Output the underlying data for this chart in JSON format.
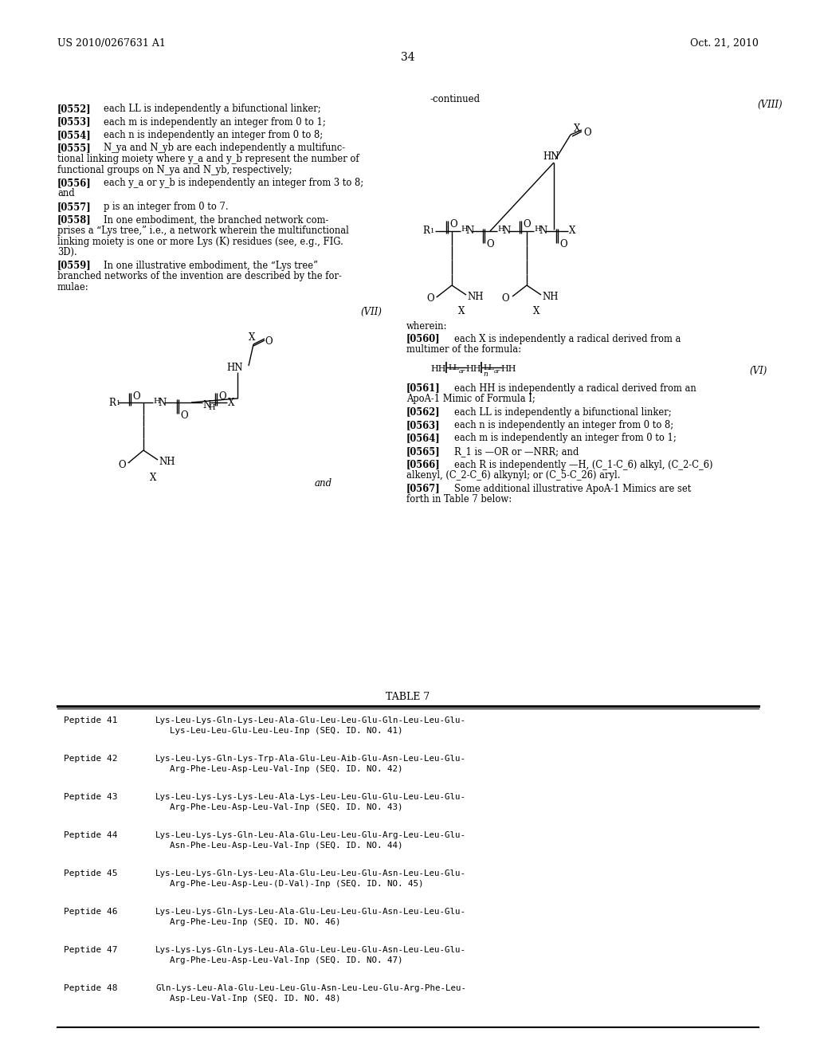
{
  "background_color": "#ffffff",
  "page_number": "34",
  "header_left": "US 2010/0267631 A1",
  "header_right": "Oct. 21, 2010",
  "para_left": [
    {
      "tag": "[0552]",
      "lines": [
        "each LL is independently a bifunctional linker;"
      ]
    },
    {
      "tag": "[0553]",
      "lines": [
        "each m is independently an integer from 0 to 1;"
      ]
    },
    {
      "tag": "[0554]",
      "lines": [
        "each n is independently an integer from 0 to 8;"
      ]
    },
    {
      "tag": "[0555]",
      "lines": [
        "N_ya and N_yb are each independently a multifunc-",
        "tional linking moiety where y_a and y_b represent the number of",
        "functional groups on N_ya and N_yb, respectively;"
      ]
    },
    {
      "tag": "[0556]",
      "lines": [
        "each y_a or y_b is independently an integer from 3 to 8;",
        "and"
      ]
    },
    {
      "tag": "[0557]",
      "lines": [
        "p is an integer from 0 to 7."
      ]
    },
    {
      "tag": "[0558]",
      "lines": [
        "In one embodiment, the branched network com-",
        "prises a “Lys tree,” i.e., a network wherein the multifunctional",
        "linking moiety is one or more Lys (K) residues (see, e.g., FIG.",
        "3D)."
      ]
    },
    {
      "tag": "[0559]",
      "lines": [
        "In one illustrative embodiment, the “Lys tree”",
        "branched networks of the invention are described by the for-",
        "mulae:"
      ]
    }
  ],
  "para_right": [
    {
      "tag": "[0561]",
      "lines": [
        "each HH is independently a radical derived from an",
        "ApoA-1 Mimic of Formula I;"
      ]
    },
    {
      "tag": "[0562]",
      "lines": [
        "each LL is independently a bifunctional linker;"
      ]
    },
    {
      "tag": "[0563]",
      "lines": [
        "each n is independently an integer from 0 to 8;"
      ]
    },
    {
      "tag": "[0564]",
      "lines": [
        "each m is independently an integer from 0 to 1;"
      ]
    },
    {
      "tag": "[0565]",
      "lines": [
        "R_1 is —OR or —NRR; and"
      ]
    },
    {
      "tag": "[0566]",
      "lines": [
        "each R is independently —H, (C_1-C_6) alkyl, (C_2-C_6)",
        "alkenyl, (C_2-C_6) alkynyl; or (C_5-C_26) aryl."
      ]
    },
    {
      "tag": "[0567]",
      "lines": [
        "Some additional illustrative ApoA-1 Mimics are set",
        "forth in Table 7 below:"
      ]
    }
  ],
  "table_title": "TABLE 7",
  "table_entries": [
    {
      "peptide": "Peptide 41",
      "line1": "Lys-Leu-Lys-Gln-Lys-Leu-Ala-Glu-Leu-Leu-Glu-Gln-Leu-Leu-Glu-",
      "line2": "Lys-Leu-Leu-Glu-Leu-Leu-Inp (SEQ. ID. NO. 41)"
    },
    {
      "peptide": "Peptide 42",
      "line1": "Lys-Leu-Lys-Gln-Lys-Trp-Ala-Glu-Leu-Aib-Glu-Asn-Leu-Leu-Glu-",
      "line2": "Arg-Phe-Leu-Asp-Leu-Val-Inp (SEQ. ID. NO. 42)"
    },
    {
      "peptide": "Peptide 43",
      "line1": "Lys-Leu-Lys-Lys-Lys-Leu-Ala-Lys-Leu-Leu-Glu-Glu-Leu-Leu-Glu-",
      "line2": "Arg-Phe-Leu-Asp-Leu-Val-Inp (SEQ. ID. NO. 43)"
    },
    {
      "peptide": "Peptide 44",
      "line1": "Lys-Leu-Lys-Lys-Gln-Leu-Ala-Glu-Leu-Leu-Glu-Arg-Leu-Leu-Glu-",
      "line2": "Asn-Phe-Leu-Asp-Leu-Val-Inp (SEQ. ID. NO. 44)"
    },
    {
      "peptide": "Peptide 45",
      "line1": "Lys-Leu-Lys-Gln-Lys-Leu-Ala-Glu-Leu-Leu-Glu-Asn-Leu-Leu-Glu-",
      "line2": "Arg-Phe-Leu-Asp-Leu-(D-Val)-Inp (SEQ. ID. NO. 45)"
    },
    {
      "peptide": "Peptide 46",
      "line1": "Lys-Leu-Lys-Gln-Lys-Leu-Ala-Glu-Leu-Leu-Glu-Asn-Leu-Leu-Glu-",
      "line2": "Arg-Phe-Leu-Inp (SEQ. ID. NO. 46)"
    },
    {
      "peptide": "Peptide 47",
      "line1": "Lys-Lys-Lys-Gln-Lys-Leu-Ala-Glu-Leu-Leu-Glu-Asn-Leu-Leu-Glu-",
      "line2": "Arg-Phe-Leu-Asp-Leu-Val-Inp (SEQ. ID. NO. 47)"
    },
    {
      "peptide": "Peptide 48",
      "line1": "Gln-Lys-Leu-Ala-Glu-Leu-Leu-Glu-Asn-Leu-Leu-Glu-Arg-Phe-Leu-",
      "line2": "Asp-Leu-Val-Inp (SEQ. ID. NO. 48)"
    }
  ]
}
